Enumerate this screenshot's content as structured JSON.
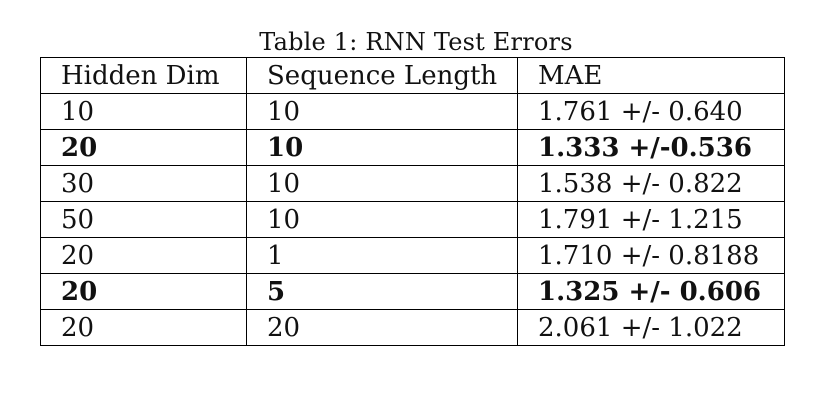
{
  "caption": "Table 1: RNN Test Errors",
  "table": {
    "headers": [
      "Hidden Dim",
      "Sequence Length",
      "MAE"
    ],
    "rows": [
      {
        "cells": [
          "10",
          "10",
          "1.761 +/- 0.640"
        ],
        "bold": false
      },
      {
        "cells": [
          "20",
          "10",
          "1.333 +/-0.536"
        ],
        "bold": true
      },
      {
        "cells": [
          "30",
          "10",
          "1.538 +/- 0.822"
        ],
        "bold": false
      },
      {
        "cells": [
          "50",
          "10",
          "1.791 +/- 1.215"
        ],
        "bold": false
      },
      {
        "cells": [
          "20",
          "1",
          "1.710 +/- 0.8188"
        ],
        "bold": false
      },
      {
        "cells": [
          "20",
          "5",
          "1.325 +/- 0.606"
        ],
        "bold": true
      },
      {
        "cells": [
          "20",
          "20",
          "2.061 +/- 1.022"
        ],
        "bold": false
      }
    ]
  }
}
